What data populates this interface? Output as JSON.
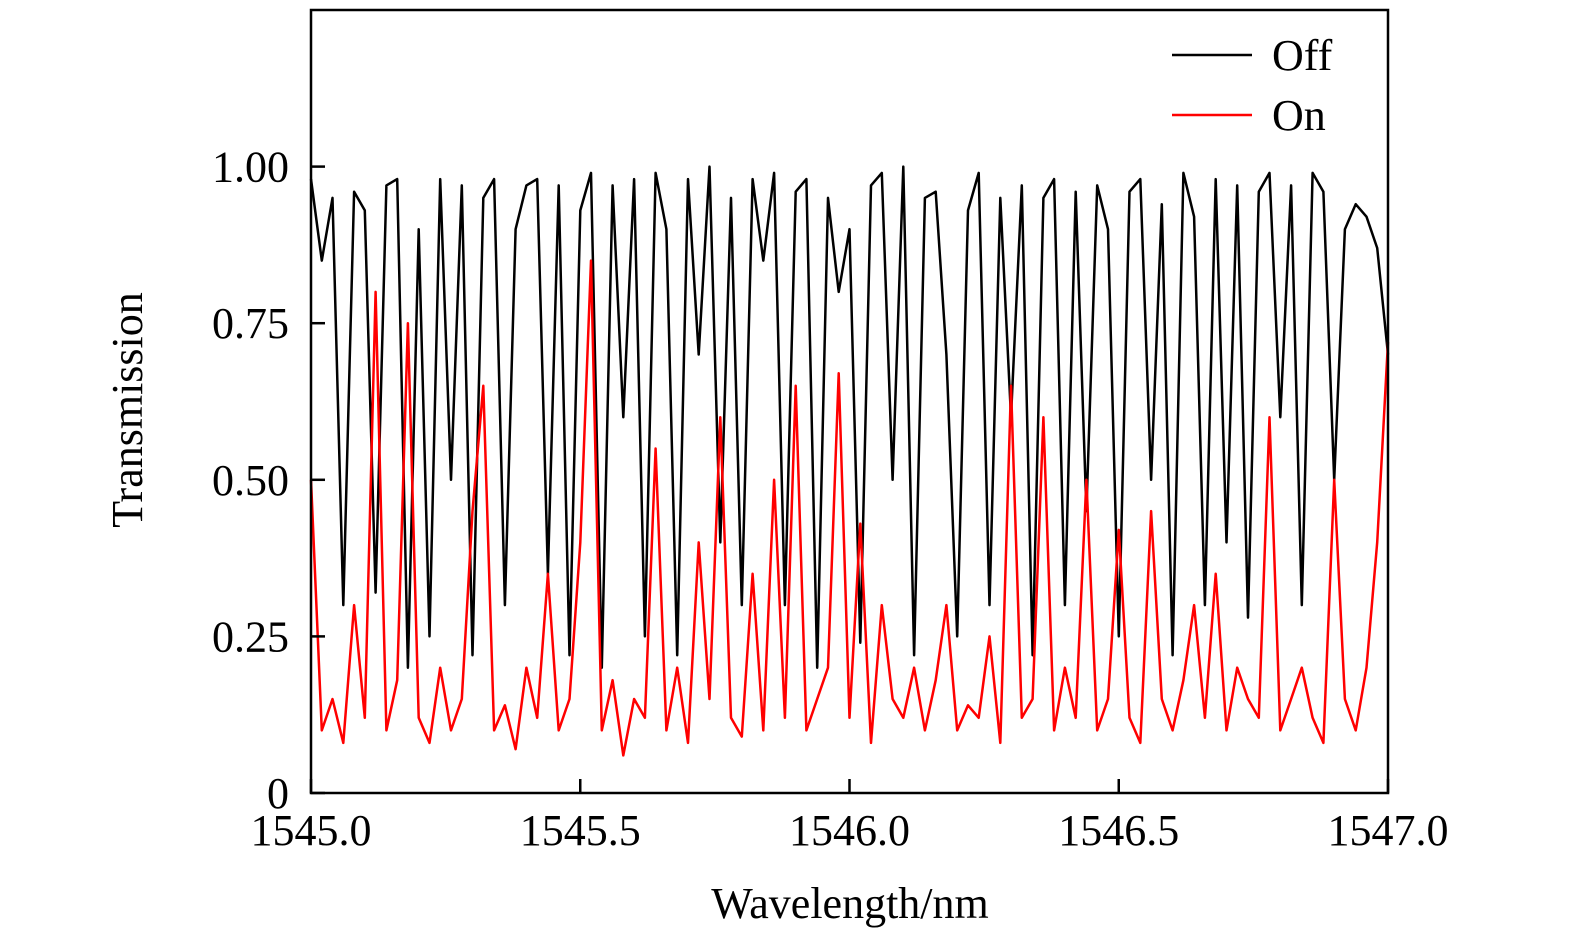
{
  "chart_data": {
    "type": "line",
    "x_label": "Wavelength/nm",
    "y_label": "Transmission",
    "x": [
      1545,
      1545.02,
      1545.04,
      1545.06,
      1545.08,
      1545.1,
      1545.12,
      1545.14,
      1545.16,
      1545.18,
      1545.2,
      1545.22,
      1545.24,
      1545.26,
      1545.28,
      1545.3,
      1545.32,
      1545.34,
      1545.36,
      1545.38,
      1545.4,
      1545.42,
      1545.44,
      1545.46,
      1545.48,
      1545.5,
      1545.52,
      1545.54,
      1545.56,
      1545.58,
      1545.6,
      1545.62,
      1545.64,
      1545.66,
      1545.68,
      1545.7,
      1545.72,
      1545.74,
      1545.76,
      1545.78,
      1545.8,
      1545.82,
      1545.84,
      1545.86,
      1545.88,
      1545.9,
      1545.92,
      1545.94,
      1545.96,
      1545.98,
      1546,
      1546.02,
      1546.04,
      1546.06,
      1546.08,
      1546.1,
      1546.12,
      1546.14,
      1546.16,
      1546.18,
      1546.2,
      1546.22,
      1546.24,
      1546.26,
      1546.28,
      1546.3,
      1546.32,
      1546.34,
      1546.36,
      1546.38,
      1546.4,
      1546.42,
      1546.44,
      1546.46,
      1546.48,
      1546.5,
      1546.52,
      1546.54,
      1546.56,
      1546.58,
      1546.6,
      1546.62,
      1546.64,
      1546.66,
      1546.68,
      1546.7,
      1546.72,
      1546.74,
      1546.76,
      1546.78,
      1546.8,
      1546.82,
      1546.84,
      1546.86,
      1546.88,
      1546.9,
      1546.92,
      1546.94,
      1546.96,
      1546.98,
      1547
    ],
    "series": [
      {
        "name": "Off",
        "color": "#000000",
        "values": [
          0.98,
          0.85,
          0.95,
          0.3,
          0.96,
          0.93,
          0.32,
          0.97,
          0.98,
          0.2,
          0.9,
          0.25,
          0.98,
          0.5,
          0.97,
          0.22,
          0.95,
          0.98,
          0.3,
          0.9,
          0.97,
          0.98,
          0.35,
          0.97,
          0.22,
          0.93,
          0.99,
          0.2,
          0.97,
          0.6,
          0.98,
          0.25,
          0.99,
          0.9,
          0.22,
          0.98,
          0.7,
          1.0,
          0.4,
          0.95,
          0.3,
          0.98,
          0.85,
          0.99,
          0.3,
          0.96,
          0.98,
          0.2,
          0.95,
          0.8,
          0.9,
          0.24,
          0.97,
          0.99,
          0.5,
          1.0,
          0.22,
          0.95,
          0.96,
          0.7,
          0.25,
          0.93,
          0.99,
          0.3,
          0.95,
          0.6,
          0.97,
          0.22,
          0.95,
          0.98,
          0.3,
          0.96,
          0.45,
          0.97,
          0.9,
          0.25,
          0.96,
          0.98,
          0.5,
          0.94,
          0.22,
          0.99,
          0.92,
          0.3,
          0.98,
          0.4,
          0.97,
          0.28,
          0.96,
          0.99,
          0.6,
          0.97,
          0.3,
          0.99,
          0.96,
          0.5,
          0.9,
          0.94,
          0.92,
          0.87,
          0.7
        ]
      },
      {
        "name": "On",
        "color": "#ff0000",
        "values": [
          0.5,
          0.1,
          0.15,
          0.08,
          0.3,
          0.12,
          0.8,
          0.1,
          0.18,
          0.75,
          0.12,
          0.08,
          0.2,
          0.1,
          0.15,
          0.45,
          0.65,
          0.1,
          0.14,
          0.07,
          0.2,
          0.12,
          0.35,
          0.1,
          0.15,
          0.4,
          0.85,
          0.1,
          0.18,
          0.06,
          0.15,
          0.12,
          0.55,
          0.1,
          0.2,
          0.08,
          0.4,
          0.15,
          0.6,
          0.12,
          0.09,
          0.35,
          0.1,
          0.5,
          0.12,
          0.65,
          0.1,
          0.15,
          0.2,
          0.67,
          0.12,
          0.43,
          0.08,
          0.3,
          0.15,
          0.12,
          0.2,
          0.1,
          0.18,
          0.3,
          0.1,
          0.14,
          0.12,
          0.25,
          0.08,
          0.65,
          0.12,
          0.15,
          0.6,
          0.1,
          0.2,
          0.12,
          0.5,
          0.1,
          0.15,
          0.42,
          0.12,
          0.08,
          0.45,
          0.15,
          0.1,
          0.18,
          0.3,
          0.12,
          0.35,
          0.1,
          0.2,
          0.15,
          0.12,
          0.6,
          0.1,
          0.15,
          0.2,
          0.12,
          0.08,
          0.5,
          0.15,
          0.1,
          0.2,
          0.4,
          0.72
        ]
      }
    ],
    "xlim": [
      1545,
      1547
    ],
    "xticks": [
      {
        "value": 1545,
        "label": "1545.0"
      },
      {
        "value": 1545.5,
        "label": "1545.5"
      },
      {
        "value": 1546,
        "label": "1546.0"
      },
      {
        "value": 1546.5,
        "label": "1546.5"
      },
      {
        "value": 1547,
        "label": "1547.0"
      }
    ],
    "ylim": [
      0,
      1.25
    ],
    "yticks": [
      0,
      {
        "value": 0.25,
        "label": "0.25"
      },
      {
        "value": 0.5,
        "label": "0.50"
      },
      {
        "value": 0.75,
        "label": "0.75"
      },
      {
        "value": 1,
        "label": "1.00"
      }
    ],
    "legend": "upper right"
  }
}
